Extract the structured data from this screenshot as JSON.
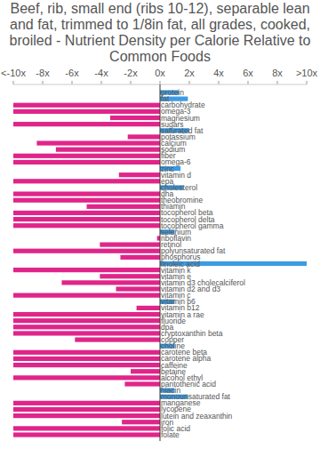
{
  "chart_data": {
    "type": "bar",
    "orientation": "horizontal",
    "title": "Beef, rib, small end (ribs 10-12), separable lean and fat, trimmed to 1/8in fat, all grades, cooked, broiled - Nutrient Density per Calorie Relative to Common Foods",
    "categories": [
      "protein",
      "fat",
      "carbohydrate",
      "omega-3",
      "magnesium",
      "sugars",
      "saturated fat",
      "potassium",
      "calcium",
      "sodium",
      "fiber",
      "omega-6",
      "zinc",
      "vitamin d",
      "epa",
      "cholesterol",
      "dha",
      "theobromine",
      "thiamin",
      "tocopherol beta",
      "tocopherol delta",
      "tocopherol gamma",
      "selenium",
      "riboflavin",
      "retinol",
      "polyunsaturated fat",
      "phosphorus",
      "linoleic acid",
      "vitamin k",
      "vitamin e",
      "vitamin d3 cholecalciferol",
      "vitamin d2 and d3",
      "vitamin c",
      "vitamin b6",
      "vitamin b12",
      "vitamin a rae",
      "fluoride",
      "dpa",
      "cryptoxanthin beta",
      "copper",
      "choline",
      "carotene beta",
      "carotene alpha",
      "caffeine",
      "betaine",
      "alcohol ethyl",
      "pantothenic acid",
      "niacin",
      "monounsaturated fat",
      "manganese",
      "lycopene",
      "lutein and zeaxanthin",
      "iron",
      "folic acid",
      "folate"
    ],
    "values": [
      1.3,
      1.9,
      -10,
      -10,
      -3.4,
      -10,
      2.0,
      -2.2,
      -8.4,
      -7.1,
      -10,
      -10,
      1.4,
      -2.8,
      -10,
      1.6,
      -10,
      -10,
      -5.0,
      -10,
      -10,
      -10,
      1.0,
      -0.2,
      -4.1,
      -10,
      -2.7,
      10,
      -10,
      -4.1,
      -6.7,
      -3.0,
      -10,
      1.0,
      -1.6,
      -10,
      -10,
      -10,
      -10,
      -5.8,
      1.0,
      -10,
      -10,
      -10,
      -2.0,
      -10,
      -2.4,
      1.0,
      1.9,
      -10,
      -10,
      -10,
      -2.6,
      -10,
      -10
    ],
    "colors": [
      "#3d9be3",
      "#3d9be3",
      "#e0258a",
      "#e0258a",
      "#e0258a",
      "#e0258a",
      "#3d9be3",
      "#e0258a",
      "#e0258a",
      "#e0258a",
      "#e0258a",
      "#e0258a",
      "#3d9be3",
      "#e0258a",
      "#e0258a",
      "#3d9be3",
      "#e0258a",
      "#e0258a",
      "#e0258a",
      "#e0258a",
      "#e0258a",
      "#e0258a",
      "#3d9be3",
      "#e0258a",
      "#e0258a",
      "#e0258a",
      "#e0258a",
      "#3d9be3",
      "#e0258a",
      "#e0258a",
      "#e0258a",
      "#e0258a",
      "#e0258a",
      "#3d9be3",
      "#e0258a",
      "#e0258a",
      "#e0258a",
      "#e0258a",
      "#e0258a",
      "#e0258a",
      "#3d9be3",
      "#e0258a",
      "#e0258a",
      "#e0258a",
      "#e0258a",
      "#e0258a",
      "#e0258a",
      "#3d9be3",
      "#3d9be3",
      "#e0258a",
      "#e0258a",
      "#e0258a",
      "#e0258a",
      "#e0258a",
      "#e0258a"
    ],
    "xlim": [
      -10,
      10
    ],
    "xticks": [
      {
        "value": -10,
        "label": "<-10x"
      },
      {
        "value": -8,
        "label": "-8x"
      },
      {
        "value": -6,
        "label": "-6x"
      },
      {
        "value": -4,
        "label": "-4x"
      },
      {
        "value": -2,
        "label": "-2x"
      },
      {
        "value": 0,
        "label": "0x"
      },
      {
        "value": 2,
        "label": "2x"
      },
      {
        "value": 4,
        "label": "4x"
      },
      {
        "value": 6,
        "label": "6x"
      },
      {
        "value": 8,
        "label": "8x"
      },
      {
        "value": 10,
        "label": ">10x"
      }
    ],
    "grid": false
  }
}
